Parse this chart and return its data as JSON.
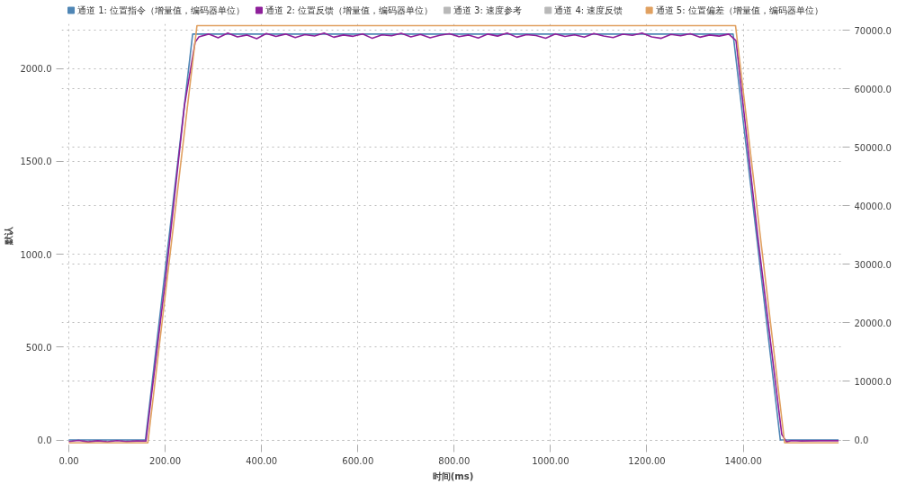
{
  "chart_data": {
    "type": "line",
    "xlabel": "时间(ms)",
    "ylabel": "默认",
    "xlim": [
      -15,
      1610
    ],
    "ylim": [
      -36,
      2240
    ],
    "y2lim": [
      -1150,
      71100
    ],
    "xticks": [
      {
        "value": 0,
        "label": "0.00"
      },
      {
        "value": 200,
        "label": "200.00"
      },
      {
        "value": 400,
        "label": "400.00"
      },
      {
        "value": 600,
        "label": "600.00"
      },
      {
        "value": 800,
        "label": "800.00"
      },
      {
        "value": 1000,
        "label": "1000.00"
      },
      {
        "value": 1200,
        "label": "1200.00"
      },
      {
        "value": 1400,
        "label": "1400.00"
      }
    ],
    "yticks": [
      {
        "value": 0,
        "label": "0.0"
      },
      {
        "value": 500,
        "label": "500.0"
      },
      {
        "value": 1000,
        "label": "1000.0"
      },
      {
        "value": 1500,
        "label": "1500.0"
      },
      {
        "value": 2000,
        "label": "2000.0"
      }
    ],
    "y2ticks": [
      {
        "value": 0,
        "label": "0.0"
      },
      {
        "value": 10000,
        "label": "10000.0"
      },
      {
        "value": 20000,
        "label": "20000.0"
      },
      {
        "value": 30000,
        "label": "30000.0"
      },
      {
        "value": 40000,
        "label": "40000.0"
      },
      {
        "value": 50000,
        "label": "50000.0"
      },
      {
        "value": 60000,
        "label": "60000.0"
      },
      {
        "value": 70000,
        "label": "70000.0"
      }
    ],
    "grid": true,
    "legend": "top",
    "line_style": "solid",
    "marker": "none",
    "series": [
      {
        "name": "通道 1: 位置指令（增量值，编码器单位）",
        "color": "#4f86b5",
        "x": [
          0,
          159,
          257,
          1379,
          1477,
          1598
        ],
        "values": [
          0,
          0,
          2185,
          2185,
          0,
          0
        ]
      },
      {
        "name": "通道 2: 位置反馈（增量值，编码器单位）",
        "color": "#8e1f9a",
        "x": [
          0,
          20,
          40,
          60,
          80,
          100,
          120,
          140,
          160,
          200,
          240,
          262,
          270,
          290,
          310,
          330,
          350,
          370,
          390,
          410,
          430,
          450,
          470,
          490,
          510,
          530,
          550,
          570,
          590,
          610,
          630,
          650,
          670,
          690,
          710,
          730,
          750,
          770,
          790,
          810,
          830,
          850,
          870,
          890,
          910,
          930,
          950,
          970,
          990,
          1010,
          1030,
          1050,
          1070,
          1090,
          1110,
          1130,
          1150,
          1170,
          1190,
          1210,
          1230,
          1250,
          1270,
          1290,
          1310,
          1330,
          1350,
          1370,
          1385,
          1430,
          1480,
          1490,
          1500,
          1520,
          1560,
          1598
        ],
        "values": [
          -8,
          -2,
          -10,
          -4,
          -9,
          -3,
          -8,
          -5,
          -6,
          850,
          1800,
          2140,
          2170,
          2185,
          2165,
          2190,
          2170,
          2180,
          2160,
          2188,
          2172,
          2185,
          2166,
          2182,
          2175,
          2190,
          2168,
          2180,
          2173,
          2186,
          2162,
          2181,
          2176,
          2189,
          2170,
          2183,
          2165,
          2178,
          2187,
          2171,
          2180,
          2164,
          2185,
          2174,
          2190,
          2168,
          2182,
          2177,
          2163,
          2186,
          2172,
          2181,
          2169,
          2188,
          2175,
          2166,
          2184,
          2178,
          2190,
          2170,
          2162,
          2183,
          2176,
          2187,
          2168,
          2180,
          2174,
          2185,
          2150,
          1100,
          30,
          -10,
          -3,
          -5,
          -4,
          -4
        ]
      },
      {
        "name": "通道 3: 速度参考",
        "color": "#b8b8b8"
      },
      {
        "name": "通道 4: 速度反馈",
        "color": "#b8b8b8"
      },
      {
        "name": "通道 5: 位置偏差（增量值，编码器单位）",
        "color": "#e0a060",
        "axis": "y2",
        "x": [
          0,
          164,
          266,
          1384,
          1486,
          1598
        ],
        "values": [
          -500,
          -500,
          70800,
          70800,
          -500,
          -500
        ]
      }
    ]
  }
}
